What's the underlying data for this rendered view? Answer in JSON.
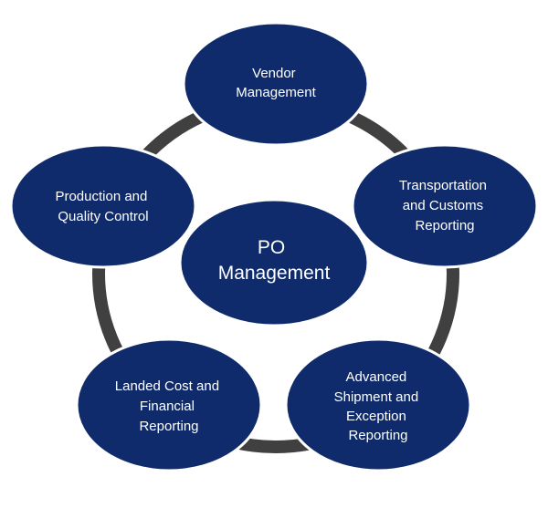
{
  "diagram": {
    "colors": {
      "node_fill": "#0f2b6b",
      "node_stroke": "#ffffff",
      "ring": "#404040",
      "text": "#ffffff",
      "background": "#ffffff"
    },
    "center": {
      "lines": [
        "PO",
        "Management"
      ]
    },
    "nodes": [
      {
        "id": "vendor",
        "lines": [
          "Vendor",
          "Management"
        ]
      },
      {
        "id": "transportation",
        "lines": [
          "Transportation",
          "and Customs",
          "Reporting"
        ]
      },
      {
        "id": "advanced-shipment",
        "lines": [
          "Advanced",
          "Shipment and",
          "Exception",
          "Reporting"
        ]
      },
      {
        "id": "landed-cost",
        "lines": [
          "Landed Cost and",
          "Financial",
          "Reporting"
        ]
      },
      {
        "id": "production",
        "lines": [
          "Production and",
          "Quality Control"
        ]
      }
    ]
  }
}
